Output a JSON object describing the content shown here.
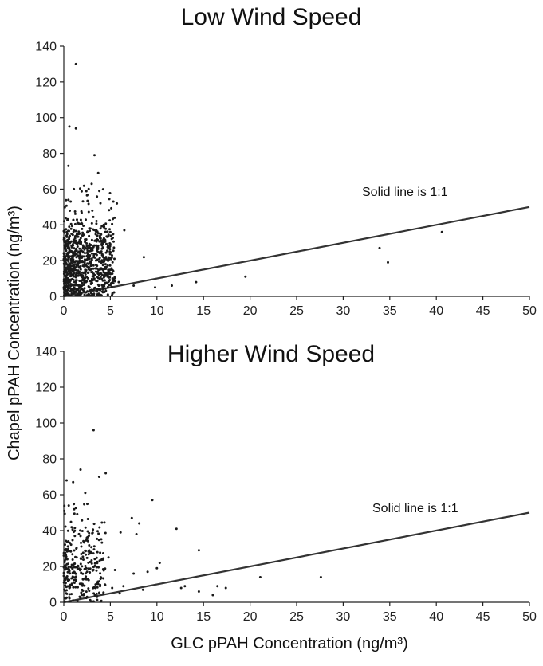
{
  "figure": {
    "ylabel": "Chapel pPAH Concentration (ng/m³)",
    "xlabel": "GLC pPAH Concentration (ng/m³)"
  },
  "chart_data": [
    {
      "type": "scatter",
      "title": "Low Wind Speed",
      "annotation": "Solid line is 1:1",
      "xlim": [
        0,
        50
      ],
      "ylim": [
        0,
        140
      ],
      "xticks": [
        0,
        5,
        10,
        15,
        20,
        25,
        30,
        35,
        40,
        45,
        50
      ],
      "yticks": [
        0,
        20,
        40,
        60,
        80,
        100,
        120,
        140
      ],
      "reference_line": {
        "x": [
          0,
          50
        ],
        "y": [
          0,
          50
        ]
      },
      "cluster": {
        "count": 900,
        "x_max": 5.5,
        "y_mean": 20,
        "y_max": 62,
        "seed": 7
      },
      "points": [
        [
          1.3,
          130
        ],
        [
          0.6,
          95
        ],
        [
          1.3,
          94
        ],
        [
          3.3,
          79
        ],
        [
          0.5,
          73
        ],
        [
          3.7,
          69
        ],
        [
          5.7,
          52
        ],
        [
          3.0,
          63
        ],
        [
          4.3,
          40
        ],
        [
          6.5,
          37
        ],
        [
          5.0,
          36
        ],
        [
          8.6,
          22
        ],
        [
          5.9,
          8
        ],
        [
          7.5,
          6
        ],
        [
          9.8,
          5
        ],
        [
          11.6,
          6
        ],
        [
          14.2,
          8
        ],
        [
          19.5,
          11
        ],
        [
          33.9,
          27
        ],
        [
          34.8,
          19
        ],
        [
          40.6,
          36
        ]
      ]
    },
    {
      "type": "scatter",
      "title": "Higher Wind Speed",
      "annotation": "Solid line is 1:1",
      "xlim": [
        0,
        50
      ],
      "ylim": [
        0,
        140
      ],
      "xticks": [
        0,
        5,
        10,
        15,
        20,
        25,
        30,
        35,
        40,
        45,
        50
      ],
      "yticks": [
        0,
        20,
        40,
        60,
        80,
        100,
        120,
        140
      ],
      "reference_line": {
        "x": [
          0,
          50
        ],
        "y": [
          0,
          50
        ]
      },
      "cluster": {
        "count": 300,
        "x_max": 4.5,
        "y_mean": 20,
        "y_max": 55,
        "seed": 11
      },
      "points": [
        [
          3.2,
          96
        ],
        [
          1.8,
          74
        ],
        [
          4.5,
          72
        ],
        [
          3.8,
          70
        ],
        [
          0.3,
          68
        ],
        [
          1.0,
          67
        ],
        [
          2.3,
          61
        ],
        [
          9.5,
          57
        ],
        [
          7.3,
          47
        ],
        [
          8.1,
          44
        ],
        [
          6.1,
          39
        ],
        [
          7.8,
          38
        ],
        [
          12.1,
          41
        ],
        [
          14.5,
          29
        ],
        [
          4.8,
          25
        ],
        [
          5.5,
          18
        ],
        [
          10.3,
          22
        ],
        [
          10.0,
          19
        ],
        [
          9.0,
          17
        ],
        [
          7.5,
          16
        ],
        [
          13.0,
          9
        ],
        [
          14.5,
          6
        ],
        [
          16.5,
          9
        ],
        [
          17.4,
          8
        ],
        [
          21.1,
          14
        ],
        [
          27.6,
          14
        ],
        [
          8.5,
          7
        ],
        [
          6.0,
          5
        ],
        [
          5.2,
          8
        ],
        [
          6.4,
          9
        ],
        [
          16.0,
          4
        ],
        [
          12.6,
          8
        ],
        [
          2.5,
          3
        ],
        [
          1.0,
          1
        ]
      ]
    }
  ]
}
